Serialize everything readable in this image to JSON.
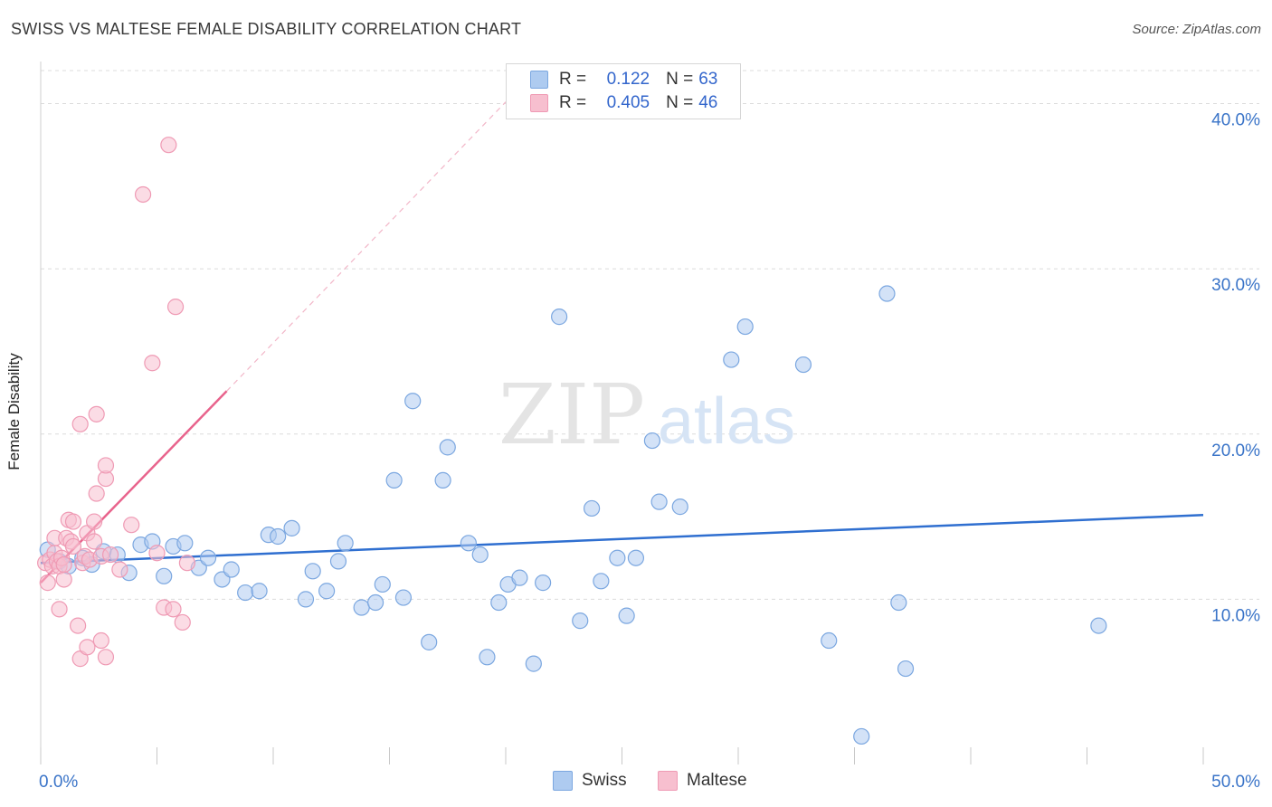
{
  "title": "SWISS VS MALTESE FEMALE DISABILITY CORRELATION CHART",
  "source": "Source: ZipAtlas.com",
  "watermark": {
    "part1": "ZIP",
    "part2": "atlas"
  },
  "legend": {
    "swiss": {
      "r_label": "R =",
      "r_value": "0.122",
      "n_label": "N =",
      "n_value": "63"
    },
    "maltese": {
      "r_label": "R =",
      "r_value": "0.405",
      "n_label": "N =",
      "n_value": "46"
    }
  },
  "bottom_legend": {
    "swiss": "Swiss",
    "maltese": "Maltese"
  },
  "colors": {
    "swiss_fill": "#aecbf0",
    "swiss_stroke": "#7ba7e0",
    "swiss_line": "#2f6fd0",
    "maltese_fill": "#f7bfcf",
    "maltese_stroke": "#ef9ab4",
    "maltese_line": "#e8638c",
    "tick_text": "#3a74c8",
    "grid": "#dcdcdc"
  },
  "chart_data": {
    "type": "scatter",
    "title": "SWISS VS MALTESE FEMALE DISABILITY CORRELATION CHART",
    "xlabel": "",
    "ylabel": "Female Disability",
    "xlim": [
      0,
      50
    ],
    "ylim": [
      0,
      42
    ],
    "x_tick_labels": [
      "0.0%",
      "50.0%"
    ],
    "y_ticks": [
      10,
      20,
      30,
      40
    ],
    "y_tick_labels": [
      "10.0%",
      "20.0%",
      "30.0%",
      "40.0%"
    ],
    "grid": true,
    "legend_position": "top-center",
    "series": [
      {
        "name": "Swiss",
        "r": 0.122,
        "n": 63,
        "trend": {
          "x": [
            0,
            50
          ],
          "y": [
            12.2,
            15.1
          ]
        },
        "points": [
          [
            0.3,
            13.0
          ],
          [
            0.8,
            12.3
          ],
          [
            1.2,
            12.0
          ],
          [
            1.8,
            12.5
          ],
          [
            2.2,
            12.1
          ],
          [
            2.7,
            12.9
          ],
          [
            3.3,
            12.7
          ],
          [
            3.8,
            11.6
          ],
          [
            4.3,
            13.3
          ],
          [
            4.8,
            13.5
          ],
          [
            5.3,
            11.4
          ],
          [
            5.7,
            13.2
          ],
          [
            6.2,
            13.4
          ],
          [
            6.8,
            11.9
          ],
          [
            7.2,
            12.5
          ],
          [
            7.8,
            11.2
          ],
          [
            8.2,
            11.8
          ],
          [
            8.8,
            10.4
          ],
          [
            9.4,
            10.5
          ],
          [
            9.8,
            13.9
          ],
          [
            10.2,
            13.8
          ],
          [
            10.8,
            14.3
          ],
          [
            11.4,
            10.0
          ],
          [
            11.7,
            11.7
          ],
          [
            12.3,
            10.5
          ],
          [
            12.8,
            12.3
          ],
          [
            13.1,
            13.4
          ],
          [
            13.8,
            9.5
          ],
          [
            14.4,
            9.8
          ],
          [
            14.7,
            10.9
          ],
          [
            15.6,
            10.1
          ],
          [
            15.2,
            17.2
          ],
          [
            16.0,
            22.0
          ],
          [
            16.7,
            7.4
          ],
          [
            17.3,
            17.2
          ],
          [
            17.5,
            19.2
          ],
          [
            18.4,
            13.4
          ],
          [
            18.9,
            12.7
          ],
          [
            19.2,
            6.5
          ],
          [
            19.7,
            9.8
          ],
          [
            20.1,
            10.9
          ],
          [
            20.6,
            11.3
          ],
          [
            21.2,
            6.1
          ],
          [
            21.6,
            11.0
          ],
          [
            22.3,
            27.1
          ],
          [
            23.2,
            8.7
          ],
          [
            23.7,
            15.5
          ],
          [
            24.1,
            11.1
          ],
          [
            24.8,
            12.5
          ],
          [
            25.2,
            9.0
          ],
          [
            25.6,
            12.5
          ],
          [
            26.3,
            19.6
          ],
          [
            26.6,
            15.9
          ],
          [
            27.5,
            15.6
          ],
          [
            29.7,
            24.5
          ],
          [
            30.3,
            26.5
          ],
          [
            32.8,
            24.2
          ],
          [
            33.9,
            7.5
          ],
          [
            35.3,
            1.7
          ],
          [
            36.4,
            28.5
          ],
          [
            36.9,
            9.8
          ],
          [
            37.2,
            5.8
          ],
          [
            45.5,
            8.4
          ]
        ]
      },
      {
        "name": "Maltese",
        "r": 0.405,
        "n": 46,
        "trend": {
          "x": [
            0,
            8
          ],
          "y": [
            11.0,
            22.6
          ]
        },
        "trend_dashed": {
          "x": [
            8,
            20
          ],
          "y": [
            22.6,
            40.1
          ]
        },
        "points": [
          [
            0.2,
            12.2
          ],
          [
            0.3,
            11.0
          ],
          [
            0.4,
            12.4
          ],
          [
            0.5,
            12.0
          ],
          [
            0.6,
            12.8
          ],
          [
            0.6,
            13.7
          ],
          [
            0.7,
            12.3
          ],
          [
            0.8,
            12.0
          ],
          [
            0.8,
            9.4
          ],
          [
            0.9,
            12.5
          ],
          [
            1.0,
            11.2
          ],
          [
            1.0,
            12.1
          ],
          [
            1.1,
            13.7
          ],
          [
            1.2,
            14.8
          ],
          [
            1.3,
            13.5
          ],
          [
            1.4,
            13.2
          ],
          [
            1.4,
            14.7
          ],
          [
            1.6,
            8.4
          ],
          [
            1.7,
            6.4
          ],
          [
            1.7,
            20.6
          ],
          [
            1.8,
            12.2
          ],
          [
            1.9,
            12.6
          ],
          [
            2.0,
            7.1
          ],
          [
            2.0,
            14.0
          ],
          [
            2.1,
            12.4
          ],
          [
            2.3,
            14.7
          ],
          [
            2.3,
            13.5
          ],
          [
            2.4,
            16.4
          ],
          [
            2.4,
            21.2
          ],
          [
            2.6,
            12.6
          ],
          [
            2.6,
            7.5
          ],
          [
            2.8,
            6.5
          ],
          [
            2.8,
            17.3
          ],
          [
            2.8,
            18.1
          ],
          [
            3.0,
            12.7
          ],
          [
            3.4,
            11.8
          ],
          [
            3.9,
            14.5
          ],
          [
            4.4,
            34.5
          ],
          [
            4.8,
            24.3
          ],
          [
            5.0,
            12.8
          ],
          [
            5.3,
            9.5
          ],
          [
            5.5,
            37.5
          ],
          [
            5.7,
            9.4
          ],
          [
            5.8,
            27.7
          ],
          [
            6.1,
            8.6
          ],
          [
            6.3,
            12.2
          ]
        ]
      }
    ]
  }
}
